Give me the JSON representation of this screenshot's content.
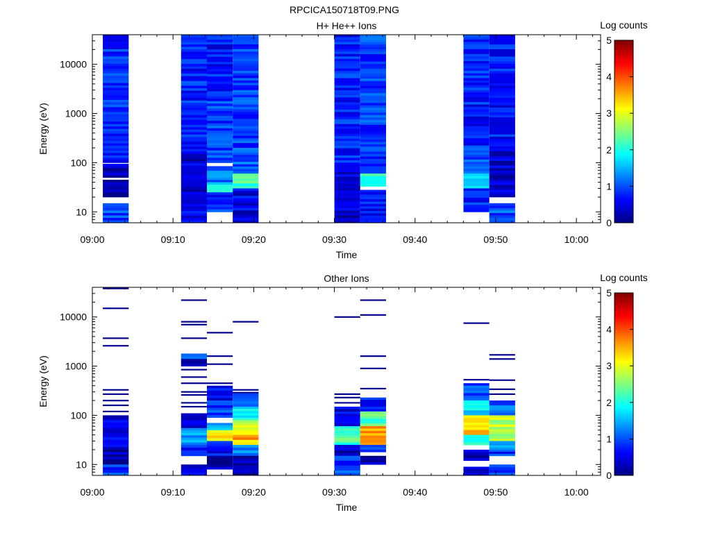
{
  "page_title": "RPCICA150718T09.PNG",
  "chart_data": [
    {
      "type": "heatmap",
      "title": "H+ He++ Ions",
      "xlabel": "Time",
      "ylabel": "Energy (eV)",
      "x_ticks": [
        "09:00",
        "09:10",
        "09:20",
        "09:30",
        "09:40",
        "09:50",
        "10:00"
      ],
      "xlim_minutes": [
        0,
        63
      ],
      "y_scale": "log",
      "ylim": [
        6,
        40000
      ],
      "y_ticks": [
        "10",
        "100",
        "1000",
        "10000"
      ],
      "grid": false,
      "colorbar": {
        "label": "Log counts",
        "range": [
          0,
          5
        ],
        "ticks": [
          "0",
          "1",
          "2",
          "3",
          "4",
          "5"
        ],
        "colormap": "jet"
      },
      "columns": [
        {
          "t0": 1.3,
          "t1": 4.5,
          "bands": [
            [
              40000,
              100,
              0.8
            ],
            [
              95,
              50,
              0.3
            ],
            [
              45,
              20,
              0.35
            ],
            [
              15,
              6,
              1.0
            ]
          ]
        },
        {
          "t0": 11.0,
          "t1": 14.2,
          "bands": [
            [
              40000,
              150,
              0.75
            ],
            [
              150,
              45,
              0.4
            ],
            [
              45,
              16,
              0.5
            ],
            [
              16,
              6,
              0.6
            ]
          ]
        },
        {
          "t0": 14.2,
          "t1": 17.4,
          "bands": [
            [
              40000,
              2000,
              0.7
            ],
            [
              2000,
              100,
              0.9
            ],
            [
              85,
              40,
              1.2
            ],
            [
              40,
              25,
              1.9
            ],
            [
              25,
              10,
              0.8
            ]
          ]
        },
        {
          "t0": 17.4,
          "t1": 20.6,
          "bands": [
            [
              40000,
              200,
              0.9
            ],
            [
              200,
              60,
              1.1
            ],
            [
              60,
              30,
              2.2
            ],
            [
              30,
              6,
              0.5
            ]
          ]
        },
        {
          "t0": 30.0,
          "t1": 33.2,
          "bands": [
            [
              40000,
              100,
              0.75
            ],
            [
              100,
              30,
              0.45
            ],
            [
              30,
              6,
              0.4
            ]
          ]
        },
        {
          "t0": 33.2,
          "t1": 36.4,
          "bands": [
            [
              40000,
              60,
              0.9
            ],
            [
              60,
              33,
              2.0
            ],
            [
              28,
              6,
              0.75
            ]
          ]
        },
        {
          "t0": 46.0,
          "t1": 49.2,
          "bands": [
            [
              40000,
              200,
              0.75
            ],
            [
              200,
              60,
              1.0
            ],
            [
              60,
              30,
              1.7
            ],
            [
              30,
              10,
              0.8
            ]
          ]
        },
        {
          "t0": 49.2,
          "t1": 52.4,
          "bands": [
            [
              40000,
              300,
              0.7
            ],
            [
              300,
              20,
              0.4
            ],
            [
              15,
              6,
              1.0
            ]
          ]
        }
      ]
    },
    {
      "type": "heatmap",
      "title": "Other Ions",
      "xlabel": "Time",
      "ylabel": "Energy (eV)",
      "x_ticks": [
        "09:00",
        "09:10",
        "09:20",
        "09:30",
        "09:40",
        "09:50",
        "10:00"
      ],
      "xlim_minutes": [
        0,
        63
      ],
      "y_scale": "log",
      "ylim": [
        6,
        40000
      ],
      "y_ticks": [
        "10",
        "100",
        "1000",
        "10000"
      ],
      "grid": false,
      "colorbar": {
        "label": "Log counts",
        "range": [
          0,
          5
        ],
        "ticks": [
          "0",
          "1",
          "2",
          "3",
          "4",
          "5"
        ],
        "colormap": "jet"
      },
      "columns": [
        {
          "t0": 1.3,
          "t1": 4.5,
          "lines": [
            38000,
            15000,
            3700,
            2600,
            330,
            270,
            200,
            160,
            120
          ],
          "bands": [
            [
              100,
              20,
              0.45
            ],
            [
              20,
              10,
              0.2
            ],
            [
              10,
              6,
              0.8
            ]
          ]
        },
        {
          "t0": 11.0,
          "t1": 14.2,
          "lines": [
            22000,
            8000,
            7000,
            3700,
            850,
            600,
            450,
            300,
            260,
            180,
            150
          ],
          "bands": [
            [
              1800,
              1400,
              1.3
            ],
            [
              1400,
              1000,
              0.15
            ],
            [
              110,
              55,
              0.4
            ],
            [
              55,
              25,
              1.3
            ],
            [
              25,
              15,
              0.8
            ],
            [
              10,
              6,
              0.4
            ]
          ]
        },
        {
          "t0": 14.2,
          "t1": 17.4,
          "lines": [
            4800,
            1600,
            1100,
            450
          ],
          "bands": [
            [
              400,
              200,
              0.6
            ],
            [
              200,
              90,
              0.9
            ],
            [
              70,
              50,
              1.6
            ],
            [
              50,
              30,
              3.2
            ],
            [
              30,
              15,
              0.6
            ],
            [
              15,
              8,
              0.2
            ]
          ]
        },
        {
          "t0": 17.4,
          "t1": 20.6,
          "lines": [
            8000,
            330,
            290
          ],
          "bands": [
            [
              280,
              150,
              1.0
            ],
            [
              150,
              80,
              1.9
            ],
            [
              80,
              40,
              2.9
            ],
            [
              40,
              25,
              3.5
            ],
            [
              25,
              15,
              1.4
            ],
            [
              15,
              6,
              0.25
            ]
          ]
        },
        {
          "t0": 30.0,
          "t1": 33.2,
          "lines": [
            10000,
            270,
            230,
            180
          ],
          "bands": [
            [
              150,
              60,
              0.5
            ],
            [
              60,
              25,
              2.2
            ],
            [
              25,
              15,
              0.3
            ],
            [
              15,
              6,
              0.9
            ]
          ]
        },
        {
          "t0": 33.2,
          "t1": 36.4,
          "lines": [
            22000,
            11000,
            1600,
            900,
            350
          ],
          "bands": [
            [
              230,
              120,
              0.8
            ],
            [
              120,
              60,
              2.3
            ],
            [
              60,
              25,
              3.7
            ],
            [
              25,
              18,
              0.8
            ],
            [
              15,
              10,
              0.2
            ]
          ]
        },
        {
          "t0": 46.0,
          "t1": 49.2,
          "lines": [
            7500,
            530
          ],
          "bands": [
            [
              450,
              200,
              1.0
            ],
            [
              200,
              100,
              1.8
            ],
            [
              100,
              40,
              3.4
            ],
            [
              40,
              25,
              2.0
            ],
            [
              20,
              12,
              0.3
            ],
            [
              9,
              6,
              0.25
            ]
          ]
        },
        {
          "t0": 49.2,
          "t1": 52.4,
          "lines": [
            1700,
            1400,
            520,
            340,
            270
          ],
          "bands": [
            [
              200,
              100,
              1.1
            ],
            [
              100,
              30,
              2.8
            ],
            [
              30,
              20,
              1.4
            ],
            [
              20,
              15,
              0.8
            ],
            [
              10,
              6,
              0.9
            ]
          ]
        }
      ]
    }
  ]
}
